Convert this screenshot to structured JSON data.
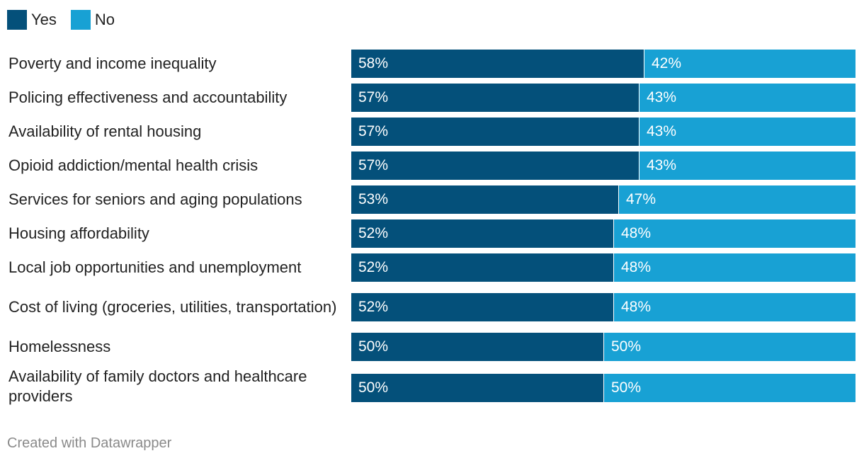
{
  "legend": {
    "items": [
      {
        "label": "Yes",
        "color": "#04507a"
      },
      {
        "label": "No",
        "color": "#18a1d4"
      }
    ]
  },
  "chart_data": {
    "type": "bar",
    "orientation": "horizontal",
    "stacked": true,
    "categories": [
      "Poverty and income inequality",
      "Policing effectiveness and accountability",
      "Availability of rental housing",
      "Opioid addiction/mental health crisis",
      "Services for seniors and aging populations",
      "Housing affordability",
      "Local job opportunities and unemployment",
      "Cost of living (groceries, utilities, transportation)",
      "Homelessness",
      "Availability of family doctors and healthcare providers"
    ],
    "series": [
      {
        "name": "Yes",
        "color": "#04507a",
        "values": [
          58,
          57,
          57,
          57,
          53,
          52,
          52,
          52,
          50,
          50
        ]
      },
      {
        "name": "No",
        "color": "#18a1d4",
        "values": [
          42,
          43,
          43,
          43,
          47,
          48,
          48,
          48,
          50,
          50
        ]
      }
    ],
    "value_suffix": "%",
    "xlim": [
      0,
      100
    ]
  },
  "footer": {
    "credit": "Created with Datawrapper"
  }
}
